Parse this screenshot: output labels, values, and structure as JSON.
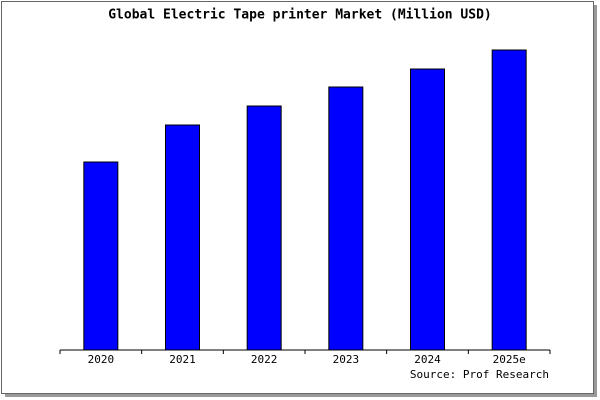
{
  "chart_data": {
    "type": "bar",
    "title": "Global Electric Tape printer Market (Million USD)",
    "categories": [
      "2020",
      "2021",
      "2022",
      "2023",
      "2024",
      "2025e"
    ],
    "values": [
      188,
      225,
      244,
      263,
      281,
      300
    ],
    "color": "#0000ff",
    "ylim": [
      0,
      300
    ],
    "source": "Source: Prof Research"
  }
}
